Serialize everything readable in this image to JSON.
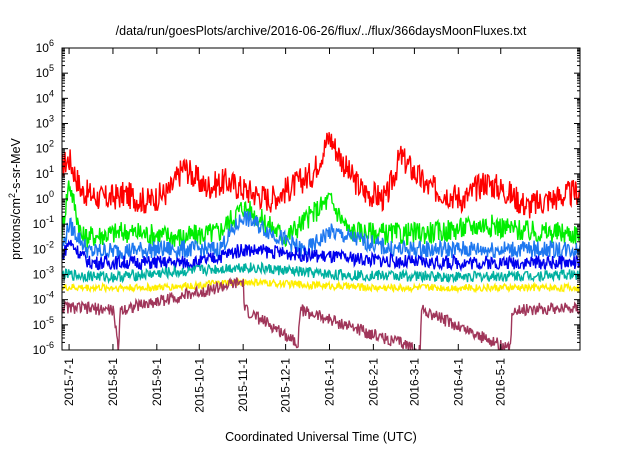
{
  "chart_data": {
    "type": "line",
    "title": "/data/run/goesPlots/archive/2016-06-26/flux/../flux/366daysMoonFluxes.txt",
    "xlabel": "Coordinated Universal Time (UTC)",
    "ylabel": "protons/cm2-s-sr-MeV",
    "ylabel_parts": [
      "protons/cm",
      "2",
      "-s-sr-MeV"
    ],
    "yscale": "log",
    "ylim_exp": [
      -6,
      6
    ],
    "ytick_labels": [
      "10-6",
      "10-5",
      "10-4",
      "10-3",
      "10-2",
      "10-1",
      "100",
      "101",
      "102",
      "103",
      "104",
      "105",
      "106"
    ],
    "xlim": [
      "2015-06-26",
      "2016-06-26"
    ],
    "x_ticks": [
      "2015-7-1",
      "2015-8-1",
      "2015-9-1",
      "2015-10-1",
      "2015-11-1",
      "2015-12-1",
      "2016-1-1",
      "2016-2-1",
      "2016-3-1",
      "2016-4-1",
      "2016-5-1"
    ],
    "x_tick_dates": [
      "2015-07-01",
      "2015-08-01",
      "2015-09-01",
      "2015-10-01",
      "2015-11-01",
      "2015-12-01",
      "2016-01-01",
      "2016-02-01",
      "2016-03-01",
      "2016-04-01",
      "2016-05-01"
    ],
    "grid": false,
    "legend": "none",
    "series": [
      {
        "color": "#ff0000",
        "points": [
          [
            "2015-06-26",
            20
          ],
          [
            "2015-07-01",
            40
          ],
          [
            "2015-07-10",
            2
          ],
          [
            "2015-07-25",
            1
          ],
          [
            "2015-08-10",
            1.5
          ],
          [
            "2015-08-25",
            0.8
          ],
          [
            "2015-09-10",
            2
          ],
          [
            "2015-09-20",
            20
          ],
          [
            "2015-10-05",
            3
          ],
          [
            "2015-10-20",
            5
          ],
          [
            "2015-11-05",
            2
          ],
          [
            "2015-11-20",
            1
          ],
          [
            "2015-12-05",
            3
          ],
          [
            "2015-12-20",
            10
          ],
          [
            "2016-01-01",
            300
          ],
          [
            "2016-01-15",
            10
          ],
          [
            "2016-01-25",
            2
          ],
          [
            "2016-02-10",
            1
          ],
          [
            "2016-02-20",
            50
          ],
          [
            "2016-03-10",
            3
          ],
          [
            "2016-03-20",
            2
          ],
          [
            "2016-04-05",
            1
          ],
          [
            "2016-04-20",
            5
          ],
          [
            "2016-05-05",
            2
          ],
          [
            "2016-05-20",
            0.5
          ],
          [
            "2016-06-05",
            1
          ],
          [
            "2016-06-26",
            2
          ]
        ]
      },
      {
        "color": "#00ee00",
        "points": [
          [
            "2015-06-26",
            0.05
          ],
          [
            "2015-07-01",
            5
          ],
          [
            "2015-07-10",
            0.03
          ],
          [
            "2015-08-10",
            0.05
          ],
          [
            "2015-09-20",
            0.03
          ],
          [
            "2015-10-15",
            0.05
          ],
          [
            "2015-11-01",
            0.5
          ],
          [
            "2015-12-01",
            0.03
          ],
          [
            "2016-01-01",
            1
          ],
          [
            "2016-01-15",
            0.05
          ],
          [
            "2016-02-20",
            0.04
          ],
          [
            "2016-03-20",
            0.05
          ],
          [
            "2016-04-20",
            0.1
          ],
          [
            "2016-05-20",
            0.05
          ],
          [
            "2016-06-26",
            0.04
          ]
        ]
      },
      {
        "color": "#1e78f0",
        "points": [
          [
            "2015-06-26",
            0.01
          ],
          [
            "2015-07-01",
            0.1
          ],
          [
            "2015-07-15",
            0.008
          ],
          [
            "2015-09-01",
            0.01
          ],
          [
            "2015-10-15",
            0.01
          ],
          [
            "2015-11-01",
            0.2
          ],
          [
            "2015-12-15",
            0.008
          ],
          [
            "2016-01-01",
            0.05
          ],
          [
            "2016-02-15",
            0.01
          ],
          [
            "2016-04-01",
            0.01
          ],
          [
            "2016-06-26",
            0.01
          ]
        ]
      },
      {
        "color": "#0000ee",
        "points": [
          [
            "2015-06-26",
            0.005
          ],
          [
            "2015-07-01",
            0.02
          ],
          [
            "2015-07-15",
            0.003
          ],
          [
            "2015-10-01",
            0.003
          ],
          [
            "2015-11-01",
            0.01
          ],
          [
            "2016-01-01",
            0.005
          ],
          [
            "2016-03-01",
            0.003
          ],
          [
            "2016-06-26",
            0.003
          ]
        ]
      },
      {
        "color": "#00b0a0",
        "points": [
          [
            "2015-06-26",
            0.001
          ],
          [
            "2015-08-01",
            0.0008
          ],
          [
            "2015-11-01",
            0.002
          ],
          [
            "2016-01-01",
            0.001
          ],
          [
            "2016-04-01",
            0.0008
          ],
          [
            "2016-06-26",
            0.001
          ]
        ]
      },
      {
        "color": "#ffee00",
        "points": [
          [
            "2015-06-26",
            0.0003
          ],
          [
            "2015-09-01",
            0.0003
          ],
          [
            "2015-11-01",
            0.0005
          ],
          [
            "2016-02-01",
            0.0003
          ],
          [
            "2016-06-26",
            0.0003
          ]
        ]
      },
      {
        "color": "#a0365a",
        "points": [
          [
            "2015-06-26",
            5e-05
          ],
          [
            "2015-08-01",
            4e-05
          ],
          [
            "2015-08-05",
            1e-06
          ],
          [
            "2015-08-06",
            4e-05
          ],
          [
            "2015-11-01",
            0.0005
          ],
          [
            "2015-11-02",
            4e-05
          ],
          [
            "2015-12-10",
            2e-06
          ],
          [
            "2015-12-11",
            4e-05
          ],
          [
            "2016-03-05",
            1e-06
          ],
          [
            "2016-03-06",
            4e-05
          ],
          [
            "2016-05-08",
            1e-06
          ],
          [
            "2016-05-09",
            4e-05
          ],
          [
            "2016-06-26",
            5e-05
          ]
        ]
      }
    ]
  }
}
